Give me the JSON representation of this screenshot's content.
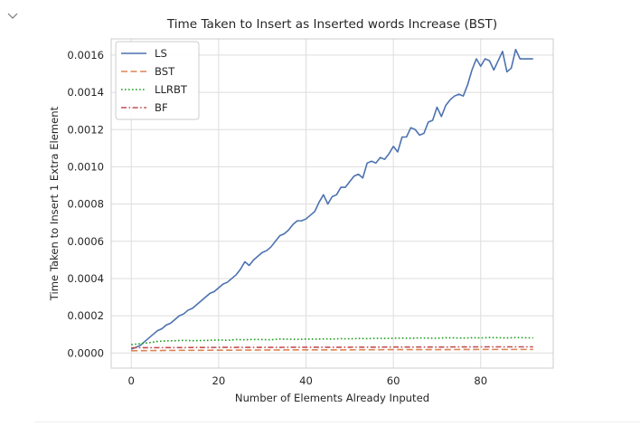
{
  "cell": {
    "collapse_icon": "chevron-down-icon"
  },
  "chart_data": {
    "type": "line",
    "title": "Time Taken to Insert as Inserted words Increase (BST)",
    "xlabel": "Number of Elements Already Inputed",
    "ylabel": "Time Taken to Insert 1 Extra Element",
    "xlim": [
      -4.6,
      96.6
    ],
    "ylim": [
      -8.12e-05,
      0.001687
    ],
    "xticks": [
      0,
      20,
      40,
      60,
      80
    ],
    "xtick_labels": [
      "0",
      "20",
      "40",
      "60",
      "80"
    ],
    "yticks": [
      0.0,
      0.0002,
      0.0004,
      0.0006,
      0.0008,
      0.001,
      0.0012,
      0.0014,
      0.0016
    ],
    "ytick_labels": [
      "0.0000",
      "0.0002",
      "0.0004",
      "0.0006",
      "0.0008",
      "0.0010",
      "0.0012",
      "0.0014",
      "0.0016"
    ],
    "grid": true,
    "legend_position": "top-left",
    "series": [
      {
        "name": "LS",
        "color": "#4c72b0",
        "dash": "solid",
        "x": [
          0,
          1,
          2,
          3,
          4,
          5,
          6,
          7,
          8,
          9,
          10,
          11,
          12,
          13,
          14,
          15,
          16,
          17,
          18,
          19,
          20,
          21,
          22,
          23,
          24,
          25,
          26,
          27,
          28,
          29,
          30,
          31,
          32,
          33,
          34,
          35,
          36,
          37,
          38,
          39,
          40,
          41,
          42,
          43,
          44,
          45,
          46,
          47,
          48,
          49,
          50,
          51,
          52,
          53,
          54,
          55,
          56,
          57,
          58,
          59,
          60,
          61,
          62,
          63,
          64,
          65,
          66,
          67,
          68,
          69,
          70,
          71,
          72,
          73,
          74,
          75,
          76,
          77,
          78,
          79,
          80,
          81,
          82,
          83,
          84,
          85,
          86,
          87,
          88,
          89,
          90,
          91,
          92
        ],
        "y": [
          2e-05,
          3e-05,
          4e-05,
          6e-05,
          8e-05,
          0.0001,
          0.00012,
          0.00013,
          0.00015,
          0.00016,
          0.00018,
          0.0002,
          0.00021,
          0.00023,
          0.00024,
          0.00026,
          0.00028,
          0.0003,
          0.00032,
          0.00033,
          0.00035,
          0.00037,
          0.00038,
          0.0004,
          0.00042,
          0.00045,
          0.00049,
          0.00047,
          0.0005,
          0.00052,
          0.00054,
          0.00055,
          0.00057,
          0.0006,
          0.00063,
          0.00064,
          0.00066,
          0.00069,
          0.00071,
          0.00071,
          0.00072,
          0.00074,
          0.00076,
          0.00081,
          0.00085,
          0.0008,
          0.00084,
          0.00085,
          0.00089,
          0.00089,
          0.00092,
          0.00095,
          0.00096,
          0.00094,
          0.00102,
          0.00103,
          0.00102,
          0.00105,
          0.00104,
          0.00107,
          0.00111,
          0.00108,
          0.00116,
          0.00116,
          0.00121,
          0.0012,
          0.00117,
          0.00118,
          0.00124,
          0.00125,
          0.00132,
          0.00127,
          0.00133,
          0.00136,
          0.00138,
          0.00139,
          0.00138,
          0.00144,
          0.00152,
          0.00158,
          0.00154,
          0.00158,
          0.00157,
          0.00152,
          0.00157,
          0.00162,
          0.00151,
          0.00153,
          0.00163,
          0.00158,
          0.00158,
          0.00158,
          0.00158
        ]
      },
      {
        "name": "BST",
        "color": "#dd8452",
        "dash": "dashed",
        "x": [
          0,
          10,
          20,
          30,
          40,
          50,
          60,
          70,
          80,
          92
        ],
        "y": [
          1.2e-05,
          1.4e-05,
          1.5e-05,
          1.6e-05,
          1.7e-05,
          1.7e-05,
          1.8e-05,
          1.8e-05,
          1.9e-05,
          1.9e-05
        ]
      },
      {
        "name": "LLRBT",
        "color": "#1b9e1b",
        "dash": "dotted",
        "x": [
          0,
          2,
          4,
          6,
          8,
          10,
          12,
          14,
          16,
          18,
          20,
          22,
          24,
          26,
          28,
          30,
          32,
          34,
          36,
          38,
          40,
          42,
          44,
          46,
          48,
          50,
          52,
          54,
          56,
          58,
          60,
          62,
          64,
          66,
          68,
          70,
          72,
          74,
          76,
          78,
          80,
          82,
          84,
          86,
          88,
          90,
          92
        ],
        "y": [
          4.5e-05,
          5e-05,
          5.5e-05,
          6.2e-05,
          6.5e-05,
          6.6e-05,
          6.8e-05,
          6.6e-05,
          6.7e-05,
          6.8e-05,
          7e-05,
          6.8e-05,
          7.2e-05,
          7.1e-05,
          7.3e-05,
          7.2e-05,
          7.1e-05,
          7.5e-05,
          7.4e-05,
          7.3e-05,
          7.5e-05,
          7.4e-05,
          7.6e-05,
          7.5e-05,
          7.7e-05,
          7.6e-05,
          7.8e-05,
          7.7e-05,
          7.9e-05,
          7.8e-05,
          7.9e-05,
          8e-05,
          7.9e-05,
          8.1e-05,
          8e-05,
          7.9e-05,
          8.2e-05,
          8.1e-05,
          8e-05,
          8.2e-05,
          8.1e-05,
          8.3e-05,
          8.2e-05,
          8.1e-05,
          8.3e-05,
          8.2e-05,
          8.1e-05
        ]
      },
      {
        "name": "BF",
        "color": "#c44e52",
        "dash": "dashdot",
        "x": [
          0,
          10,
          20,
          30,
          40,
          50,
          60,
          70,
          80,
          92
        ],
        "y": [
          2.8e-05,
          2.9e-05,
          3e-05,
          3e-05,
          3.1e-05,
          3.1e-05,
          3.2e-05,
          3.2e-05,
          3.3e-05,
          3.3e-05
        ]
      }
    ]
  }
}
